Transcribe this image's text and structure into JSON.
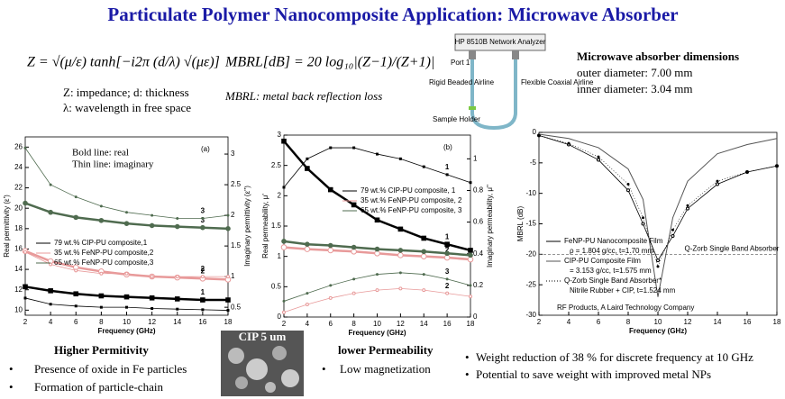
{
  "title": "Particulate Polymer Nanocomposite Application: Microwave Absorber",
  "equations": {
    "impedance": "Z = √(μ/ε) tanh[−i2π (d/λ) √(με)]",
    "impedance_caption": [
      "Z: impedance; d: thickness",
      "λ: wavelength in free space"
    ],
    "mbrl": "MBRL[dB] = 20 log₁₀|(Z−1)/(Z+1)|",
    "mbrl_caption": "MBRL: metal back reflection loss"
  },
  "setup": {
    "analyzer": "HP 8510B Network Analyzer",
    "port": "Port 1",
    "rigid": "Rigid Beaded Airline",
    "flexible": "Flexible Coaxial Airline",
    "holder": "Sample Holder"
  },
  "dimensions": {
    "title": "Microwave absorber dimensions",
    "outer": "outer diameter: 7.00 mm",
    "inner": "inner diameter: 3.04 mm"
  },
  "bottom": {
    "permittivity_title": "Higher Permitivity",
    "permittivity_points": [
      "Presence of oxide in Fe particles",
      "Formation of particle-chain"
    ],
    "image_label": "CIP 5 um",
    "permeability_title": "lower Permeability",
    "permeability_points": [
      "Low magnetization"
    ],
    "weight_points": [
      "Weight reduction of 38 % for discrete frequency at 10 GHz",
      "Potential to save weight with improved metal NPs"
    ]
  },
  "chart_data": [
    {
      "type": "line",
      "panel_label": "(a)",
      "notes": [
        "Bold line: real",
        "Thin line: imaginary"
      ],
      "x_label": "Frequency (GHz)",
      "y_label": "Real permittivity (ε')",
      "y2_label": "Imaginary permittivity (ε'')",
      "x": [
        2,
        4,
        6,
        8,
        10,
        12,
        14,
        16,
        18
      ],
      "xlim": [
        2,
        18
      ],
      "xticks": [
        2,
        4,
        6,
        8,
        10,
        12,
        14,
        16,
        18
      ],
      "ylim": [
        9.5,
        27
      ],
      "yticks": [
        10,
        12,
        14,
        16,
        18,
        20,
        22,
        24,
        26
      ],
      "y2lim": [
        0.37,
        3.28
      ],
      "y2ticks": [
        0.5,
        1.0,
        1.5,
        2.0,
        2.5,
        3.0
      ],
      "series": [
        {
          "name": "79 wt.% CIP-PU composite,1",
          "label": "1",
          "color": "#000000",
          "marker": "square",
          "width": 2.5,
          "values": [
            12.3,
            11.9,
            11.6,
            11.4,
            11.3,
            11.2,
            11.1,
            11.0,
            11.0
          ]
        },
        {
          "name": "35 wt.% FeNP-PU composite,2",
          "label": "2",
          "color": "#e89a9a",
          "marker": "open",
          "width": 2.5,
          "values": [
            15.8,
            14.8,
            14.2,
            13.8,
            13.5,
            13.3,
            13.2,
            13.1,
            13.0
          ]
        },
        {
          "name": "65 wt.% FeNP-PU composite,3",
          "label": "3",
          "color": "#4f6b4f",
          "marker": "circle",
          "width": 2.5,
          "values": [
            20.5,
            19.6,
            19.1,
            18.8,
            18.5,
            18.3,
            18.2,
            18.1,
            18.0
          ]
        },
        {
          "axis": "y2",
          "color": "#000000",
          "marker": "square",
          "width": 0.8,
          "values": [
            0.65,
            0.55,
            0.52,
            0.5,
            0.5,
            0.48,
            0.47,
            0.46,
            0.45
          ]
        },
        {
          "axis": "y2",
          "label": "2",
          "color": "#e89a9a",
          "marker": "open",
          "width": 0.8,
          "values": [
            1.4,
            1.2,
            1.1,
            1.05,
            1.05,
            1.0,
            1.0,
            1.0,
            1.0
          ]
        },
        {
          "axis": "y2",
          "label": "3",
          "color": "#4f6b4f",
          "marker": "circle",
          "width": 0.8,
          "values": [
            3.1,
            2.5,
            2.3,
            2.15,
            2.05,
            2.0,
            1.95,
            1.95,
            2.0
          ]
        }
      ]
    },
    {
      "type": "line",
      "panel_label": "(b)",
      "x_label": "Frequency (GHz)",
      "y_label": "Real permeability, μ'",
      "y2_label": "Imaginary permeability, μ''",
      "x": [
        2,
        4,
        6,
        8,
        10,
        12,
        14,
        16,
        18
      ],
      "xlim": [
        2,
        18
      ],
      "xticks": [
        2,
        4,
        6,
        8,
        10,
        12,
        14,
        16,
        18
      ],
      "ylim": [
        0,
        3.0
      ],
      "yticks": [
        0.0,
        0.5,
        1.0,
        1.5,
        2.0,
        2.5,
        3.0
      ],
      "y2lim": [
        0,
        1.15
      ],
      "y2ticks": [
        0.0,
        0.2,
        0.4,
        0.6,
        0.8,
        1.0
      ],
      "series": [
        {
          "name": "79 wt.% CIP-PU composite, 1",
          "label": "1",
          "color": "#000000",
          "marker": "square",
          "width": 2.5,
          "values": [
            2.9,
            2.45,
            2.1,
            1.85,
            1.6,
            1.45,
            1.3,
            1.2,
            1.1
          ]
        },
        {
          "name": "35 wt.% FeNP-PU composite, 2",
          "label": "2",
          "color": "#e89a9a",
          "marker": "open",
          "width": 2.5,
          "values": [
            1.15,
            1.12,
            1.1,
            1.08,
            1.05,
            1.02,
            1.0,
            0.98,
            0.95
          ]
        },
        {
          "name": "65 wt.% FeNP-PU composite, 3",
          "label": "3",
          "color": "#4f6b4f",
          "marker": "circle",
          "width": 2.5,
          "values": [
            1.25,
            1.2,
            1.18,
            1.15,
            1.12,
            1.1,
            1.08,
            1.05,
            1.02
          ]
        },
        {
          "axis": "y2",
          "label": "1",
          "color": "#000000",
          "marker": "square",
          "width": 0.8,
          "values": [
            0.82,
            1.0,
            1.07,
            1.07,
            1.03,
            1.0,
            0.95,
            0.9,
            0.85
          ]
        },
        {
          "axis": "y2",
          "label": "2",
          "color": "#e89a9a",
          "marker": "open",
          "width": 0.8,
          "values": [
            0.03,
            0.08,
            0.12,
            0.15,
            0.17,
            0.18,
            0.17,
            0.15,
            0.13
          ]
        },
        {
          "axis": "y2",
          "label": "3",
          "color": "#4f6b4f",
          "marker": "circle",
          "width": 0.8,
          "values": [
            0.1,
            0.15,
            0.2,
            0.24,
            0.27,
            0.28,
            0.27,
            0.24,
            0.2
          ]
        }
      ]
    },
    {
      "type": "line",
      "credit": "RF Products, A Laird Technology Company",
      "x_label": "Frequency (GHz)",
      "y_label": "MBRL (dB)",
      "x": [
        2,
        4,
        6,
        8,
        9,
        10,
        11,
        12,
        14,
        16,
        18
      ],
      "xlim": [
        2,
        18
      ],
      "xticks": [
        2,
        4,
        6,
        8,
        10,
        12,
        14,
        16,
        18
      ],
      "ylim": [
        -30,
        0
      ],
      "yticks": [
        0,
        -5,
        -10,
        -15,
        -20,
        -25,
        -30
      ],
      "reference_line": {
        "value": -20,
        "label": "Q-Zorb Single Band Absorber"
      },
      "series": [
        {
          "name": "FeNP-PU Nanocomposite Film",
          "detail": "ρ = 1.804 g/cc, t=1.70 mm",
          "color": "#000000",
          "marker": "open",
          "width": 0.8,
          "values": [
            -0.5,
            -2,
            -4.5,
            -9.5,
            -15,
            -21,
            -17,
            -12.5,
            -8.5,
            -6.5,
            -5.5
          ]
        },
        {
          "name": "CIP-PU Composite Film",
          "detail": "= 3.153 g/cc, t=1.575 mm",
          "color": "#555555",
          "marker": "none",
          "width": 1,
          "values": [
            -0.3,
            -1,
            -2.5,
            -6,
            -11,
            -27,
            -14,
            -8,
            -3.5,
            -2,
            -1
          ]
        },
        {
          "name": "Q-Zorb Single Band Absorber*",
          "detail": "Nitrile Rubber + CIP, t=1.524 mm",
          "color": "#000000",
          "marker": "dot",
          "width": 0.6,
          "values": [
            -0.5,
            -1.8,
            -4,
            -8.5,
            -14,
            -22,
            -16,
            -12,
            -8,
            -6.5,
            -5.5
          ]
        }
      ]
    }
  ]
}
